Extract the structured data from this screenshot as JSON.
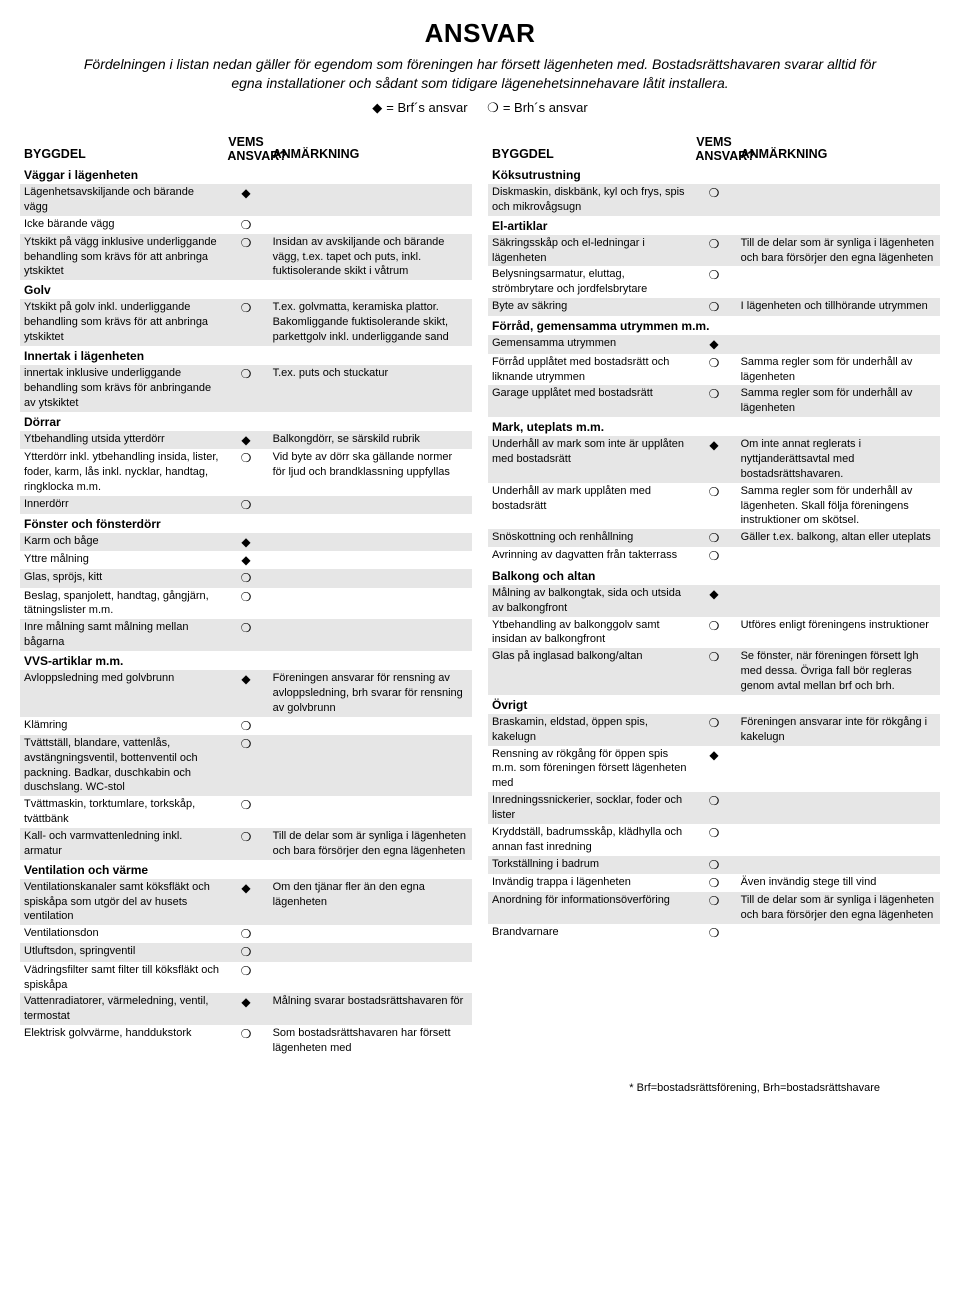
{
  "title": "ANSVAR",
  "intro": "Fördelningen i listan nedan gäller för egendom som föreningen har försett lägenheten med. Bostadsrättshavaren svarar alltid för egna installationer och sådant som tidigare lägenehetsinnehavare låtit installera.",
  "legend_brf": "= Brf´s ansvar",
  "legend_brh": "= Brh´s ansvar",
  "headers": {
    "byggdel": "BYGGDEL",
    "vems1": "VEMS",
    "vems2": "ANSVAR?",
    "anm": "ANMÄRKNING"
  },
  "footnote": "* Brf=bostadsrättsförening, Brh=bostadsrättshavare",
  "left": [
    {
      "type": "section",
      "name": "Väggar i lägenheten"
    },
    {
      "name": "Lägenhetsavskiljande och bärande vägg",
      "mark": "◆",
      "remark": "",
      "band": "b"
    },
    {
      "name": "Icke bärande vägg",
      "mark": "❍",
      "remark": "",
      "band": "a"
    },
    {
      "name": "Ytskikt på vägg inklusive underliggande behandling som krävs för att anbringa ytskiktet",
      "mark": "❍",
      "remark": "Insidan av avskiljande och bärande vägg, t.ex. tapet och puts, inkl. fuktisolerande skikt i våtrum",
      "band": "b"
    },
    {
      "type": "section",
      "name": "Golv"
    },
    {
      "name": "Ytskikt på golv inkl. underliggande behandling som krävs för att anbringa ytskiktet",
      "mark": "❍",
      "remark": "T.ex. golvmatta, keramiska plattor. Bakomliggande fuktisolerande skikt, parkettgolv inkl. underliggande sand",
      "band": "b"
    },
    {
      "type": "section",
      "name": "Innertak i lägenheten"
    },
    {
      "name": "innertak inklusive underliggande behandling som krävs för anbringande av ytskiktet",
      "mark": "❍",
      "remark": "T.ex. puts och stuckatur",
      "band": "b"
    },
    {
      "type": "section",
      "name": "Dörrar"
    },
    {
      "name": "Ytbehandling utsida ytterdörr",
      "mark": "◆",
      "remark": "Balkongdörr, se särskild rubrik",
      "band": "b"
    },
    {
      "name": "Ytterdörr inkl. ytbehandling insida, lister, foder, karm, lås inkl. nycklar, handtag, ringklocka m.m.",
      "mark": "❍",
      "remark": "Vid byte av dörr ska gällande normer för ljud och brandklassning uppfyllas",
      "band": "a"
    },
    {
      "name": "Innerdörr",
      "mark": "❍",
      "remark": "",
      "band": "b"
    },
    {
      "type": "section",
      "name": "Fönster och fönsterdörr"
    },
    {
      "name": "Karm och båge",
      "mark": "◆",
      "remark": "",
      "band": "b"
    },
    {
      "name": "Yttre målning",
      "mark": "◆",
      "remark": "",
      "band": "a"
    },
    {
      "name": "Glas, spröjs, kitt",
      "mark": "❍",
      "remark": "",
      "band": "b"
    },
    {
      "name": "Beslag, spanjolett, handtag, gångjärn, tätningslister m.m.",
      "mark": "❍",
      "remark": "",
      "band": "a"
    },
    {
      "name": "Inre målning samt målning mellan bågarna",
      "mark": "❍",
      "remark": "",
      "band": "b"
    },
    {
      "type": "section",
      "name": "VVS-artiklar m.m."
    },
    {
      "name": "Avloppsledning med golvbrunn",
      "mark": "◆",
      "remark": "Föreningen ansvarar för rensning av avloppsledning, brh svarar för rensning av golvbrunn",
      "band": "b"
    },
    {
      "name": "Klämring",
      "mark": "❍",
      "remark": "",
      "band": "a"
    },
    {
      "name": "Tvättställ, blandare, vattenlås, avstängningsventil, bottenventil och packning. Badkar, duschkabin och duschslang. WC-stol",
      "mark": "❍",
      "remark": "",
      "band": "b"
    },
    {
      "name": "Tvättmaskin, torktumlare, torkskåp, tvättbänk",
      "mark": "❍",
      "remark": "",
      "band": "a"
    },
    {
      "name": "Kall- och varmvattenledning inkl. armatur",
      "mark": "❍",
      "remark": "Till de delar som är synliga i lägenheten och bara försörjer den egna lägenheten",
      "band": "b"
    },
    {
      "type": "section",
      "name": "Ventilation och värme"
    },
    {
      "name": "Ventilationskanaler samt köksfläkt och spiskåpa som utgör del av husets ventilation",
      "mark": "◆",
      "remark": "Om den tjänar fler än den egna lägenheten",
      "band": "b"
    },
    {
      "name": "Ventilationsdon",
      "mark": "❍",
      "remark": "",
      "band": "a"
    },
    {
      "name": "Utluftsdon, springventil",
      "mark": "❍",
      "remark": "",
      "band": "b"
    },
    {
      "name": "Vädringsfilter samt filter till köksfläkt och spiskåpa",
      "mark": "❍",
      "remark": "",
      "band": "a"
    },
    {
      "name": "Vattenradiatorer, värmeledning, ventil, termostat",
      "mark": "◆",
      "remark": "Målning svarar bostadsrättshavaren för",
      "band": "b"
    },
    {
      "name": "Elektrisk golvvärme, handdukstork",
      "mark": "❍",
      "remark": "Som bostadsrättshavaren har försett lägenheten med",
      "band": "a"
    }
  ],
  "right": [
    {
      "type": "section",
      "name": "Köksutrustning"
    },
    {
      "name": "Diskmaskin, diskbänk, kyl och frys, spis och mikrovågsugn",
      "mark": "❍",
      "remark": "",
      "band": "b"
    },
    {
      "type": "section",
      "name": "El-artiklar"
    },
    {
      "name": "Säkringsskåp och el-ledningar i lägenheten",
      "mark": "❍",
      "remark": "Till de delar som är synliga i lägenheten och bara försörjer den egna lägenheten",
      "band": "b"
    },
    {
      "name": "Belysningsarmatur, eluttag, strömbrytare och jordfelsbrytare",
      "mark": "❍",
      "remark": "",
      "band": "a"
    },
    {
      "name": "Byte av säkring",
      "mark": "❍",
      "remark": "I lägenheten och tillhörande utrymmen",
      "band": "b"
    },
    {
      "type": "section",
      "name": "Förråd, gemensamma utrymmen m.m."
    },
    {
      "name": "Gemensamma utrymmen",
      "mark": "◆",
      "remark": "",
      "band": "b"
    },
    {
      "name": "Förråd upplåtet med bostadsrätt och liknande utrymmen",
      "mark": "❍",
      "remark": "Samma regler som för underhåll av lägenheten",
      "band": "a"
    },
    {
      "name": "Garage upplåtet med bostadsrätt",
      "mark": "❍",
      "remark": "Samma regler som för underhåll av lägenheten",
      "band": "b"
    },
    {
      "type": "section",
      "name": "Mark, uteplats m.m."
    },
    {
      "name": "Underhåll av mark som inte är upplåten med bostadsrätt",
      "mark": "◆",
      "remark": "Om inte annat reglerats i nyttjanderättsavtal med bostadsrättshavaren.",
      "band": "b"
    },
    {
      "name": "Underhåll av mark upplåten med bostadsrätt",
      "mark": "❍",
      "remark": "Samma regler som för underhåll av lägenheten. Skall följa föreningens instruktioner om skötsel.",
      "band": "a"
    },
    {
      "name": "Snöskottning och renhållning",
      "mark": "❍",
      "remark": "Gäller t.ex. balkong, altan eller uteplats",
      "band": "b"
    },
    {
      "name": "Avrinning av dagvatten från takterrass",
      "mark": "❍",
      "remark": "",
      "band": "a"
    },
    {
      "type": "section",
      "name": "Balkong och altan"
    },
    {
      "name": "Målning av balkongtak, sida och utsida av balkongfront",
      "mark": "◆",
      "remark": "",
      "band": "b"
    },
    {
      "name": "Ytbehandling av balkonggolv samt insidan av balkongfront",
      "mark": "❍",
      "remark": "Utföres enligt föreningens instruktioner",
      "band": "a"
    },
    {
      "name": "Glas på inglasad balkong/altan",
      "mark": "❍",
      "remark": "Se fönster, när föreningen försett lgh med dessa. Övriga fall bör regleras genom avtal mellan brf och brh.",
      "band": "b"
    },
    {
      "type": "section",
      "name": "Övrigt"
    },
    {
      "name": "Braskamin, eldstad, öppen spis, kakelugn",
      "mark": "❍",
      "remark": "Föreningen ansvarar inte för rökgång i kakelugn",
      "band": "b"
    },
    {
      "name": "Rensning av rökgång för öppen spis m.m. som föreningen försett lägenheten med",
      "mark": "◆",
      "remark": "",
      "band": "a"
    },
    {
      "name": "Inredningssnickerier, socklar, foder och lister",
      "mark": "❍",
      "remark": "",
      "band": "b"
    },
    {
      "name": "Kryddställ, badrumsskåp, klädhylla och annan fast inredning",
      "mark": "❍",
      "remark": "",
      "band": "a"
    },
    {
      "name": "Torkställning i badrum",
      "mark": "❍",
      "remark": "",
      "band": "b"
    },
    {
      "name": "Invändig trappa i lägenheten",
      "mark": "❍",
      "remark": "Även invändig stege till vind",
      "band": "a"
    },
    {
      "name": "Anordning för informationsöverföring",
      "mark": "❍",
      "remark": "Till de delar som är synliga i lägenheten och bara försörjer den egna lägenheten",
      "band": "b"
    },
    {
      "name": "Brandvarnare",
      "mark": "❍",
      "remark": "",
      "band": "a"
    }
  ]
}
